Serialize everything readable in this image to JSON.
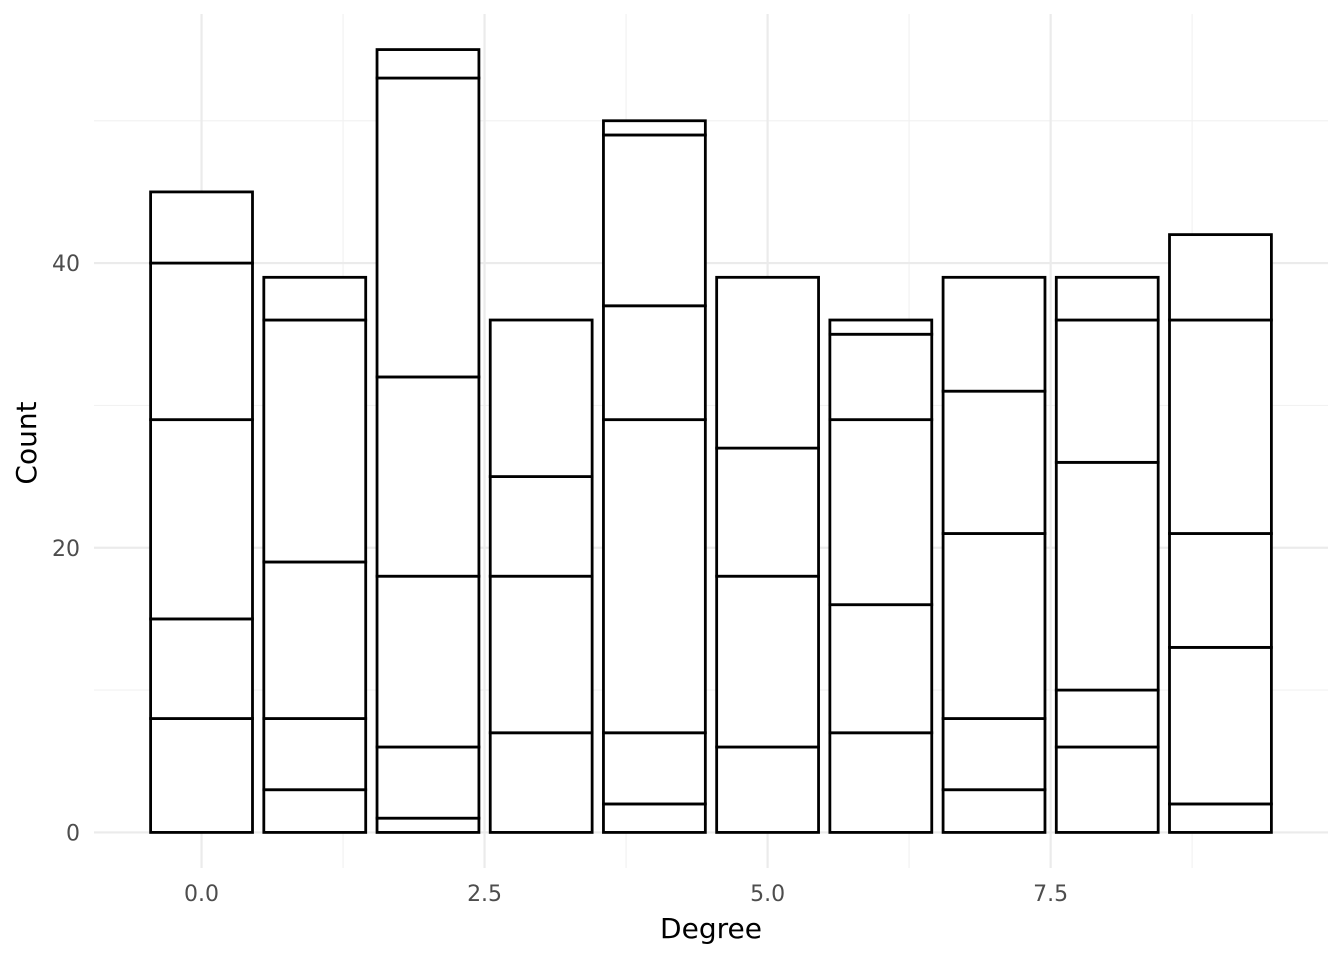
{
  "chart_data": {
    "type": "bar",
    "stacked": true,
    "xlabel": "Degree",
    "ylabel": "Count",
    "xlim": [
      -0.95,
      9.95
    ],
    "ylim": [
      -2.5,
      57.5
    ],
    "x_ticks": [
      0.0,
      2.5,
      5.0,
      7.5
    ],
    "x_tick_labels": [
      "0.0",
      "2.5",
      "5.0",
      "7.5"
    ],
    "y_ticks": [
      0,
      20,
      40
    ],
    "y_tick_labels": [
      "0",
      "20",
      "40"
    ],
    "bar_width": 0.9,
    "grid": true,
    "legend": "none",
    "colors": {
      "fill": "#ffffff",
      "stroke": "#000000",
      "grid": "#ebebeb"
    },
    "bars": [
      {
        "x": 0,
        "boundaries": [
          0,
          8,
          15,
          29,
          40,
          45
        ]
      },
      {
        "x": 1,
        "boundaries": [
          0,
          3,
          8,
          19,
          36,
          39
        ]
      },
      {
        "x": 2,
        "boundaries": [
          0,
          1,
          6,
          18,
          32,
          53,
          55
        ]
      },
      {
        "x": 3,
        "boundaries": [
          0,
          7,
          18,
          25,
          36
        ]
      },
      {
        "x": 4,
        "boundaries": [
          0,
          2,
          7,
          29,
          37,
          49,
          50
        ]
      },
      {
        "x": 5,
        "boundaries": [
          0,
          6,
          18,
          27,
          39
        ]
      },
      {
        "x": 6,
        "boundaries": [
          0,
          7,
          16,
          29,
          35,
          36
        ]
      },
      {
        "x": 7,
        "boundaries": [
          0,
          3,
          8,
          21,
          31,
          39
        ]
      },
      {
        "x": 8,
        "boundaries": [
          0,
          6,
          10,
          26,
          36,
          39
        ]
      },
      {
        "x": 9,
        "boundaries": [
          0,
          2,
          13,
          21,
          36,
          42
        ]
      }
    ]
  }
}
